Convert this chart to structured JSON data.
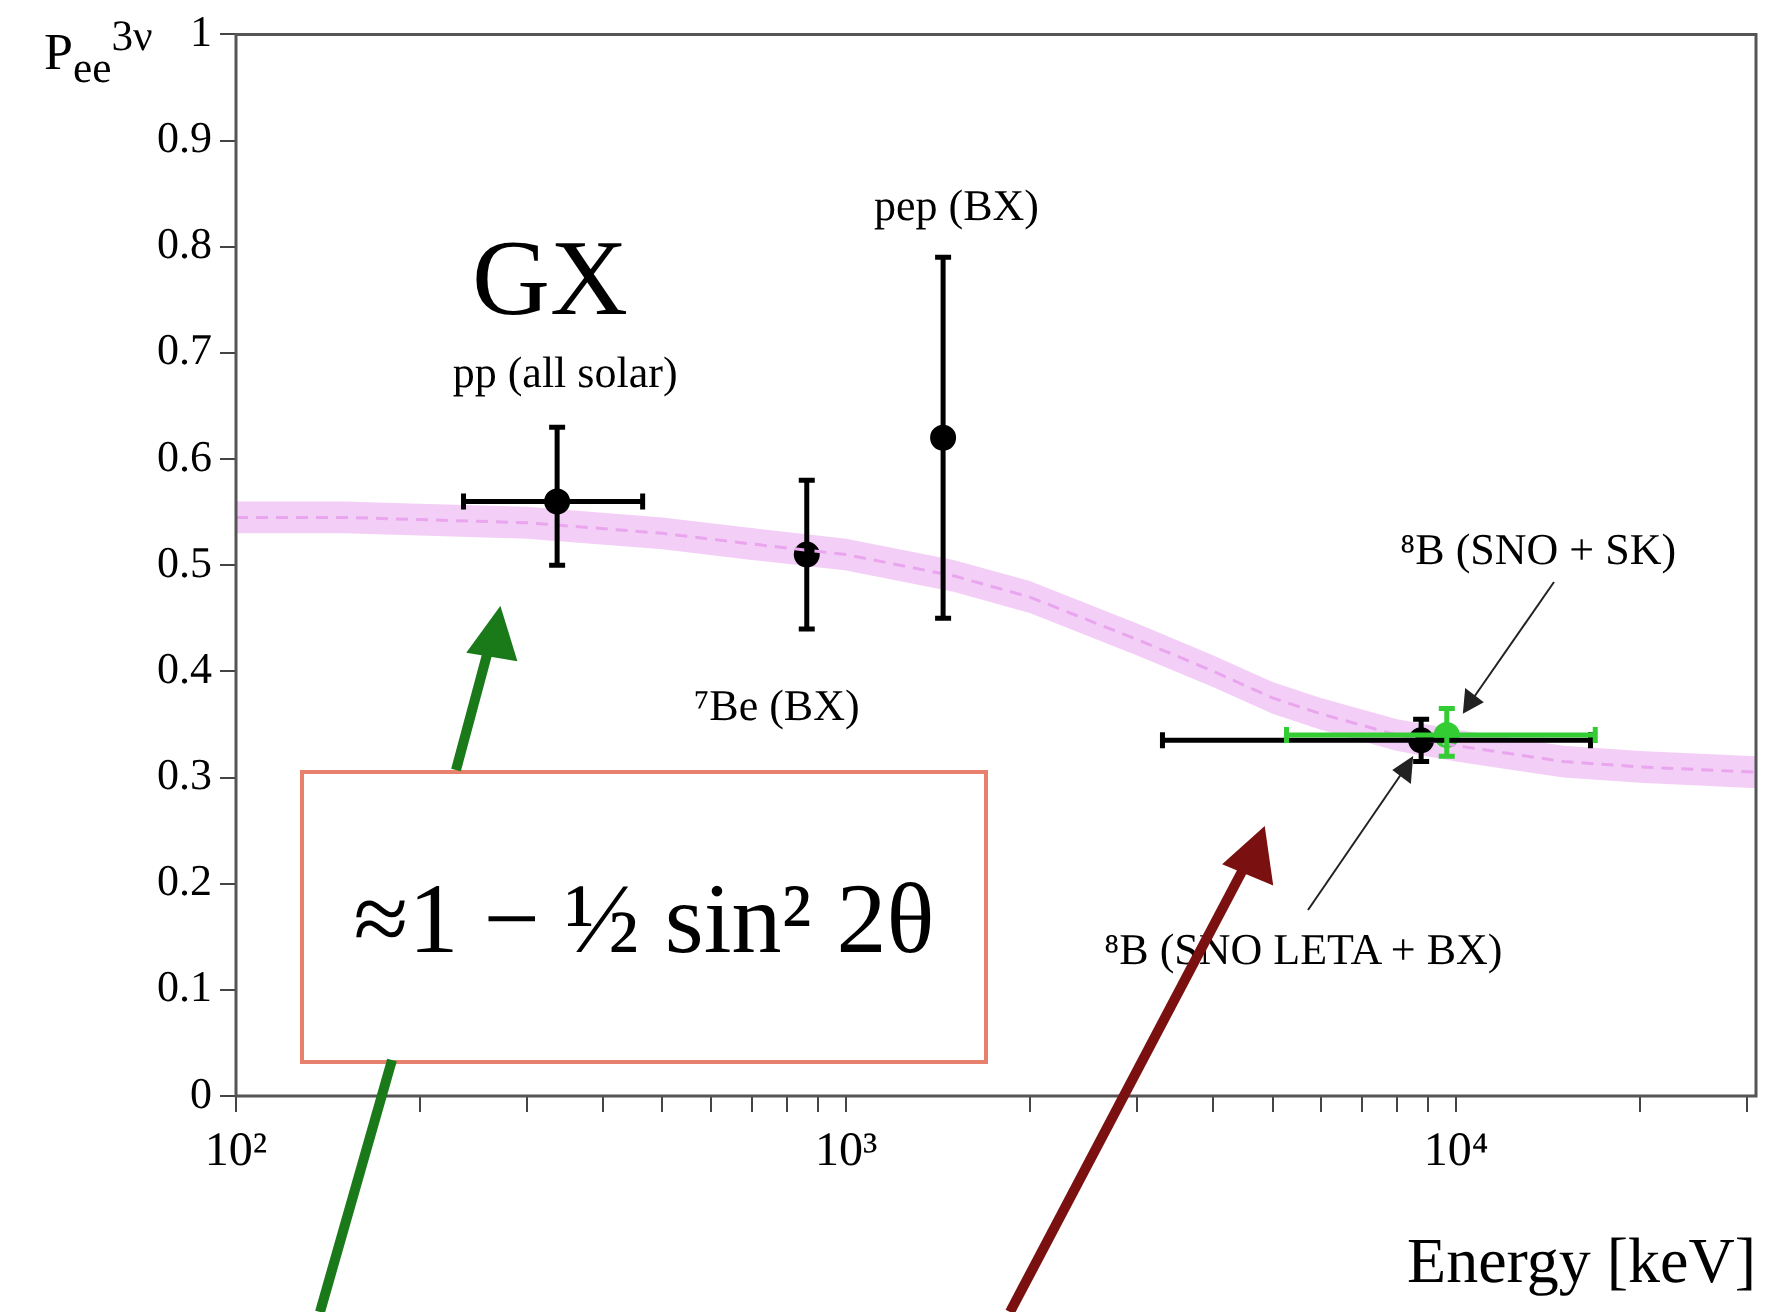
{
  "chart_data": {
    "type": "scatter",
    "xlabel": "Energy [keV]",
    "ylabel": "P$_{ee}$$^{3ν}$",
    "log": "x",
    "grid": false,
    "legend": false,
    "marker": "circle",
    "xlim": [
      100,
      31000
    ],
    "ylim": [
      0,
      1
    ],
    "xticks": [
      {
        "value": 100,
        "label": "10²"
      },
      {
        "value": 200,
        "label": null
      },
      {
        "value": 300,
        "label": null
      },
      {
        "value": 400,
        "label": null
      },
      {
        "value": 500,
        "label": null
      },
      {
        "value": 600,
        "label": null
      },
      {
        "value": 700,
        "label": null
      },
      {
        "value": 800,
        "label": null
      },
      {
        "value": 900,
        "label": null
      },
      {
        "value": 1000,
        "label": "10³"
      },
      {
        "value": 2000,
        "label": null
      },
      {
        "value": 3000,
        "label": null
      },
      {
        "value": 4000,
        "label": null
      },
      {
        "value": 5000,
        "label": null
      },
      {
        "value": 6000,
        "label": null
      },
      {
        "value": 7000,
        "label": null
      },
      {
        "value": 8000,
        "label": null
      },
      {
        "value": 9000,
        "label": null
      },
      {
        "value": 10000,
        "label": "10⁴"
      },
      {
        "value": 20000,
        "label": null
      },
      {
        "value": 30000,
        "label": null
      }
    ],
    "yticks": [
      0,
      0.1,
      0.2,
      0.3,
      0.4,
      0.5,
      0.6,
      0.7,
      0.8,
      0.9,
      1
    ],
    "series": [
      {
        "type": "line",
        "color": "#e9a6ee",
        "line_style": "dashed",
        "marker": "none",
        "x": [
          100,
          150,
          200,
          300,
          500,
          700,
          1000,
          1500,
          2000,
          3000,
          4000,
          5000,
          6000,
          8000,
          10000,
          15000,
          20000,
          31000
        ],
        "values": [
          0.545,
          0.545,
          0.543,
          0.54,
          0.53,
          0.52,
          0.51,
          0.49,
          0.47,
          0.43,
          0.4,
          0.375,
          0.36,
          0.34,
          0.33,
          0.315,
          0.31,
          0.305
        ],
        "lower": [
          0.53,
          0.53,
          0.528,
          0.525,
          0.515,
          0.505,
          0.495,
          0.475,
          0.455,
          0.415,
          0.385,
          0.36,
          0.345,
          0.325,
          0.315,
          0.3,
          0.295,
          0.29
        ],
        "upper": [
          0.56,
          0.56,
          0.558,
          0.555,
          0.545,
          0.535,
          0.525,
          0.505,
          0.485,
          0.445,
          0.415,
          0.39,
          0.375,
          0.355,
          0.345,
          0.33,
          0.325,
          0.32
        ]
      },
      {
        "color": "#000000",
        "x": [
          336,
          862,
          1442,
          8760
        ],
        "values": [
          0.56,
          0.51,
          0.62,
          0.335
        ],
        "errors": [
          [
            0.5,
            0.63
          ],
          [
            0.44,
            0.58
          ],
          [
            0.45,
            0.79
          ],
          [
            0.315,
            0.355
          ]
        ],
        "xerrors": [
          [
            236,
            464
          ],
          null,
          null,
          [
            3300,
            16600
          ]
        ]
      },
      {
        "color": "#33cc33",
        "x": [
          9650
        ],
        "values": [
          0.34
        ],
        "errors": [
          [
            0.32,
            0.365
          ]
        ],
        "xerrors": [
          [
            5270,
            16900
          ]
        ]
      }
    ],
    "annotations": [
      {
        "text": "pp (all solar)",
        "x": 336,
        "y": 0.56
      },
      {
        "text": "⁷Be (BX)",
        "x": 862,
        "y": 0.51
      },
      "pep (BX)",
      "⁸B (SNO + SK)",
      "⁸B (SNO LETA + BX)",
      "GX",
      "≈1 − ½ sin² 2θ"
    ]
  }
}
